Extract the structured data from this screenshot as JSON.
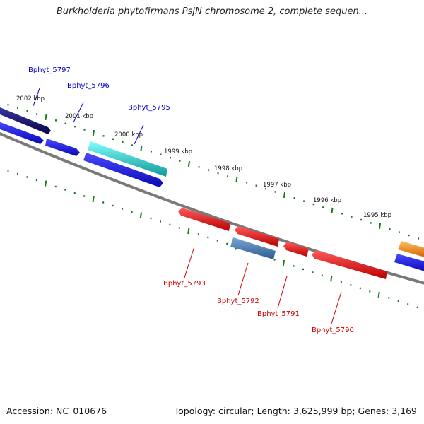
{
  "title": "Burkholderia phytofirmans PsJN chromosome 2, complete sequen...",
  "footer": {
    "accession": "Accession: NC_010676",
    "summary": "Topology: circular; Length: 3,625,999 bp; Genes: 3,169"
  },
  "colors": {
    "backbone": "#808080",
    "tick": "#1a7a1a",
    "forward_label": "#0000cc",
    "reverse_label": "#cc0000",
    "navy": "#0a0a6e",
    "blue": "#1010ee",
    "cyan": "#20c8c8",
    "red": "#ee1010",
    "steel": "#4a7ab0",
    "orange": "#ff8800"
  },
  "scale_labels": [
    "2002 kbp",
    "2001 kbp",
    "2000 kbp",
    "1999 kbp",
    "1998 kbp",
    "1997 kbp",
    "1996 kbp",
    "1995 kbp"
  ],
  "forward_gene_labels": [
    "Bphyt_5797",
    "Bphyt_5796",
    "Bphyt_5795"
  ],
  "reverse_gene_labels": [
    "Bphyt_5793",
    "Bphyt_5792",
    "Bphyt_5791",
    "Bphyt_5790"
  ]
}
